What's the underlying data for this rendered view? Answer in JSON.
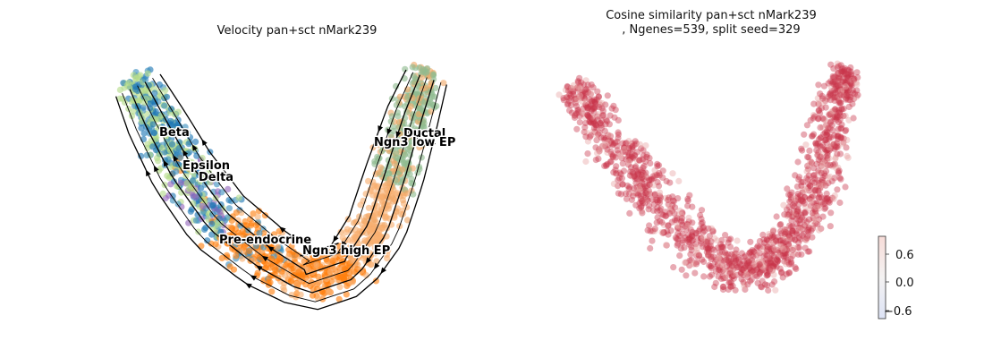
{
  "chart_data": [
    {
      "type": "scatter",
      "title": "Velocity pan+sct nMark239",
      "overlay": "velocity streamlines with arrows",
      "axes_visible": false,
      "grid": false,
      "cluster_labels": [
        "Beta",
        "Epsilon",
        "Delta",
        "Ductal",
        "Ngn3 low EP",
        "Pre-endocrine",
        "Ngn3 high EP"
      ],
      "cluster_colors": {
        "Ductal": "#8fbc8f",
        "Ngn3 low EP": "#f0a868",
        "Ngn3 high EP": "#f9b071",
        "Pre-endocrine": "#ff7f0e",
        "Beta": "#b5dc8a",
        "Alpha": "#1f77b4",
        "Delta": "#3e8fbf",
        "Epsilon": "#9467bd"
      }
    },
    {
      "type": "scatter",
      "title": "Cosine similarity pan+sct nMark239\n, Ngenes=539, split seed=329",
      "axes_visible": false,
      "grid": false,
      "point_color": "#c8344a",
      "colorbar": {
        "ticks": [
          "0.6",
          "0.0",
          "−0.6"
        ],
        "low_color": "#dde3f5",
        "high_color": "#f7dcd8",
        "range": [
          -0.9,
          0.95
        ]
      }
    }
  ]
}
